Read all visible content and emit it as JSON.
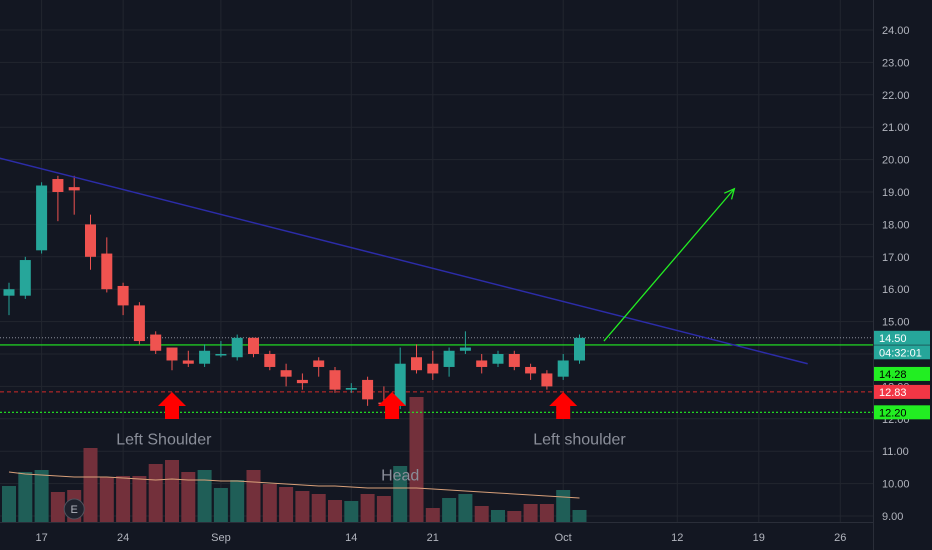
{
  "chart_data": {
    "type": "candlestick",
    "x_ticks": [
      "17",
      "24",
      "Sep",
      "14",
      "21",
      "Oct",
      "12",
      "19",
      "26"
    ],
    "y_ticks": [
      "24.00",
      "23.00",
      "22.00",
      "21.00",
      "20.00",
      "19.00",
      "18.00",
      "17.00",
      "16.00",
      "15.00",
      "14.00",
      "13.00",
      "12.00",
      "11.00",
      "10.00",
      "9.00"
    ],
    "ylim": [
      8.8,
      24.5
    ],
    "candles": [
      {
        "o": 15.8,
        "h": 16.2,
        "l": 15.2,
        "c": 16.0
      },
      {
        "o": 15.8,
        "h": 17.0,
        "l": 15.7,
        "c": 16.9
      },
      {
        "o": 17.2,
        "h": 19.3,
        "l": 17.1,
        "c": 19.2
      },
      {
        "o": 19.4,
        "h": 19.5,
        "l": 18.1,
        "c": 19.0
      },
      {
        "o": 19.15,
        "h": 19.5,
        "l": 18.3,
        "c": 19.05
      },
      {
        "o": 18.0,
        "h": 18.3,
        "l": 16.6,
        "c": 17.0
      },
      {
        "o": 17.1,
        "h": 17.6,
        "l": 15.9,
        "c": 16.0
      },
      {
        "o": 16.1,
        "h": 16.2,
        "l": 15.2,
        "c": 15.5
      },
      {
        "o": 15.5,
        "h": 15.6,
        "l": 14.3,
        "c": 14.4
      },
      {
        "o": 14.6,
        "h": 14.7,
        "l": 14.0,
        "c": 14.1
      },
      {
        "o": 14.2,
        "h": 14.2,
        "l": 13.5,
        "c": 13.8
      },
      {
        "o": 13.8,
        "h": 14.1,
        "l": 13.6,
        "c": 13.7
      },
      {
        "o": 13.7,
        "h": 14.3,
        "l": 13.6,
        "c": 14.1
      },
      {
        "o": 14.0,
        "h": 14.4,
        "l": 13.9,
        "c": 14.0
      },
      {
        "o": 13.9,
        "h": 14.6,
        "l": 13.8,
        "c": 14.5
      },
      {
        "o": 14.5,
        "h": 14.5,
        "l": 13.9,
        "c": 14.0
      },
      {
        "o": 14.0,
        "h": 14.1,
        "l": 13.5,
        "c": 13.6
      },
      {
        "o": 13.5,
        "h": 13.7,
        "l": 13.0,
        "c": 13.3
      },
      {
        "o": 13.2,
        "h": 13.4,
        "l": 12.9,
        "c": 13.1
      },
      {
        "o": 13.8,
        "h": 13.9,
        "l": 13.3,
        "c": 13.6
      },
      {
        "o": 13.5,
        "h": 13.6,
        "l": 12.8,
        "c": 12.9
      },
      {
        "o": 12.9,
        "h": 13.1,
        "l": 12.8,
        "c": 12.95
      },
      {
        "o": 13.2,
        "h": 13.3,
        "l": 12.4,
        "c": 12.6
      },
      {
        "o": 12.5,
        "h": 13.0,
        "l": 12.4,
        "c": 12.45
      },
      {
        "o": 12.4,
        "h": 14.2,
        "l": 12.3,
        "c": 13.7
      },
      {
        "o": 13.9,
        "h": 14.3,
        "l": 13.4,
        "c": 13.5
      },
      {
        "o": 13.7,
        "h": 14.1,
        "l": 13.2,
        "c": 13.4
      },
      {
        "o": 13.6,
        "h": 14.2,
        "l": 13.3,
        "c": 14.1
      },
      {
        "o": 14.1,
        "h": 14.7,
        "l": 14.0,
        "c": 14.2
      },
      {
        "o": 13.8,
        "h": 14.0,
        "l": 13.4,
        "c": 13.6
      },
      {
        "o": 13.7,
        "h": 14.1,
        "l": 13.6,
        "c": 14.0
      },
      {
        "o": 14.0,
        "h": 14.1,
        "l": 13.5,
        "c": 13.6
      },
      {
        "o": 13.6,
        "h": 13.7,
        "l": 13.2,
        "c": 13.4
      },
      {
        "o": 13.4,
        "h": 13.5,
        "l": 12.9,
        "c": 13.0
      },
      {
        "o": 13.3,
        "h": 14.0,
        "l": 13.2,
        "c": 13.8
      },
      {
        "o": 13.8,
        "h": 14.6,
        "l": 13.7,
        "c": 14.5
      }
    ],
    "volume": [
      0.36,
      0.5,
      0.52,
      0.3,
      0.32,
      0.74,
      0.45,
      0.46,
      0.46,
      0.58,
      0.62,
      0.5,
      0.52,
      0.34,
      0.42,
      0.52,
      0.38,
      0.35,
      0.31,
      0.28,
      0.22,
      0.21,
      0.28,
      0.26,
      0.56,
      1.25,
      0.14,
      0.24,
      0.28,
      0.16,
      0.12,
      0.11,
      0.18,
      0.18,
      0.32,
      0.12
    ],
    "volume_ma": [
      0.5,
      0.48,
      0.47,
      0.46,
      0.45,
      0.45,
      0.45,
      0.44,
      0.43,
      0.42,
      0.43,
      0.42,
      0.42,
      0.41,
      0.41,
      0.4,
      0.39,
      0.38,
      0.37,
      0.36,
      0.36,
      0.35,
      0.34,
      0.34,
      0.34,
      0.34,
      0.33,
      0.32,
      0.31,
      0.3,
      0.29,
      0.28,
      0.27,
      0.26,
      0.25,
      0.24
    ],
    "lines": {
      "downtrend": {
        "start": [
          -1,
          20.1
        ],
        "end": [
          49,
          13.7
        ],
        "color": "#2c2ca8"
      },
      "neckline": {
        "price": 14.28,
        "color": "#22ee22"
      },
      "support": {
        "price": 12.2,
        "color": "#22ee22"
      },
      "red_dashed": {
        "price": 12.83,
        "color": "#d02a2a"
      },
      "last_price_line": {
        "price": 14.5,
        "color": "#8a8e99"
      },
      "breakout_arrow": {
        "start": [
          36.5,
          14.4
        ],
        "end": [
          44.5,
          19.1
        ],
        "color": "#22ee22"
      }
    },
    "price_tags": [
      {
        "price": 14.5,
        "text": "14.50",
        "bg": "#26a69a",
        "fg": "#ffffff"
      },
      {
        "price": 14.5,
        "text": "04:32:01",
        "bg": "#26a69a",
        "fg": "#ffffff",
        "offset": 1
      },
      {
        "price": 14.28,
        "text": "14.28",
        "bg": "#22ee22",
        "fg": "#000000",
        "offset": 2
      },
      {
        "price": 12.83,
        "text": "12.83",
        "bg": "#f23645",
        "fg": "#ffffff"
      },
      {
        "price": 12.2,
        "text": "12.20",
        "bg": "#22ee22",
        "fg": "#000000"
      }
    ],
    "arrows": [
      10,
      23.5,
      34
    ],
    "annotations": [
      {
        "text": "Left Shoulder",
        "index": 9.5,
        "price": 11.2
      },
      {
        "text": "Head",
        "index": 24,
        "price": 10.1
      },
      {
        "text": "Left shoulder",
        "index": 35,
        "price": 11.2
      }
    ],
    "earnings_marker": "E",
    "colors": {
      "up": "#26a69a",
      "down": "#ef5350",
      "vol_up": "#1f5e57",
      "vol_down": "#73303b",
      "vol_ma": "#d8a07a",
      "grid": "#22262f",
      "arrow": "#ff0000"
    }
  }
}
